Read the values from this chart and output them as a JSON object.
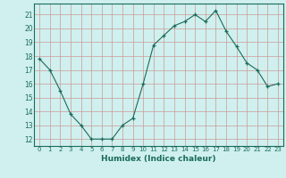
{
  "x": [
    0,
    1,
    2,
    3,
    4,
    5,
    6,
    7,
    8,
    9,
    10,
    11,
    12,
    13,
    14,
    15,
    16,
    17,
    18,
    19,
    20,
    21,
    22,
    23
  ],
  "y": [
    17.8,
    17.0,
    15.5,
    13.8,
    13.0,
    12.0,
    12.0,
    12.0,
    13.0,
    13.5,
    16.0,
    18.8,
    19.5,
    20.2,
    20.5,
    21.0,
    20.5,
    21.3,
    19.8,
    18.7,
    17.5,
    17.0,
    15.8,
    16.0
  ],
  "xlabel": "Humidex (Indice chaleur)",
  "ylim": [
    11.5,
    21.8
  ],
  "xlim": [
    -0.5,
    23.5
  ],
  "yticks": [
    12,
    13,
    14,
    15,
    16,
    17,
    18,
    19,
    20,
    21
  ],
  "xticks": [
    0,
    1,
    2,
    3,
    4,
    5,
    6,
    7,
    8,
    9,
    10,
    11,
    12,
    13,
    14,
    15,
    16,
    17,
    18,
    19,
    20,
    21,
    22,
    23
  ],
  "line_color": "#1a6b5a",
  "marker": "+",
  "bg_color": "#cff0ee",
  "grid_color": "#cc9999",
  "axes_color": "#1a6b5a",
  "tick_color": "#1a6b5a"
}
